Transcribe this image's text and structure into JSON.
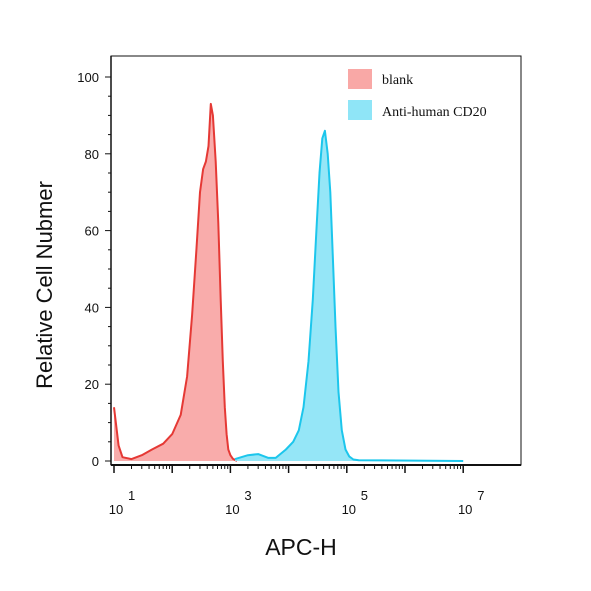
{
  "colors": {
    "blank_fill": "#f9a8a6",
    "blank_line": "#e53935",
    "cd20_fill": "#8fe5f7",
    "cd20_line": "#1cc6ec",
    "axis": "#111111"
  },
  "chart_data": {
    "type": "area",
    "xlabel": "APC-H",
    "ylabel": "Relative Cell Nubmer",
    "x_scale": "log",
    "xlim": [
      10,
      10000000
    ],
    "ylim": [
      0,
      100
    ],
    "y_ticks": [
      0,
      20,
      40,
      60,
      80,
      100
    ],
    "y_tick_labels": [
      "0",
      "20",
      "40",
      "60",
      "80",
      "100"
    ],
    "x_tick_labels": [
      {
        "value": 10,
        "base": "10",
        "exp": "1"
      },
      {
        "value": 1000,
        "base": "10",
        "exp": "3"
      },
      {
        "value": 100000,
        "base": "10",
        "exp": "5"
      },
      {
        "value": 10000000,
        "base": "10",
        "exp": "7"
      }
    ],
    "legend_position": "top-right",
    "grid": false,
    "series": [
      {
        "name": "blank",
        "points": [
          [
            10,
            14
          ],
          [
            12,
            4
          ],
          [
            14,
            1
          ],
          [
            20,
            0.5
          ],
          [
            30,
            1.5
          ],
          [
            45,
            3
          ],
          [
            70,
            4.5
          ],
          [
            100,
            7
          ],
          [
            140,
            12
          ],
          [
            180,
            22
          ],
          [
            220,
            38
          ],
          [
            260,
            55
          ],
          [
            300,
            70
          ],
          [
            340,
            76
          ],
          [
            380,
            78
          ],
          [
            420,
            82
          ],
          [
            460,
            93
          ],
          [
            500,
            90
          ],
          [
            560,
            78
          ],
          [
            620,
            62
          ],
          [
            680,
            42
          ],
          [
            740,
            26
          ],
          [
            800,
            14
          ],
          [
            860,
            7
          ],
          [
            920,
            3
          ],
          [
            1000,
            1.5
          ],
          [
            1100,
            0.6
          ],
          [
            1300,
            0
          ]
        ]
      },
      {
        "name": "Anti-human CD20",
        "points": [
          [
            1200,
            0.5
          ],
          [
            2000,
            1.5
          ],
          [
            3000,
            1.8
          ],
          [
            4500,
            0.8
          ],
          [
            6000,
            0.8
          ],
          [
            9000,
            3
          ],
          [
            12000,
            5
          ],
          [
            15000,
            8
          ],
          [
            18000,
            14
          ],
          [
            22000,
            26
          ],
          [
            26000,
            42
          ],
          [
            30000,
            60
          ],
          [
            34000,
            75
          ],
          [
            38000,
            84
          ],
          [
            42000,
            86
          ],
          [
            47000,
            80
          ],
          [
            52000,
            70
          ],
          [
            58000,
            52
          ],
          [
            64000,
            35
          ],
          [
            72000,
            18
          ],
          [
            82000,
            8
          ],
          [
            95000,
            3
          ],
          [
            110000,
            1.2
          ],
          [
            130000,
            0.4
          ],
          [
            160000,
            0.2
          ],
          [
            10000000,
            0
          ]
        ]
      }
    ]
  }
}
